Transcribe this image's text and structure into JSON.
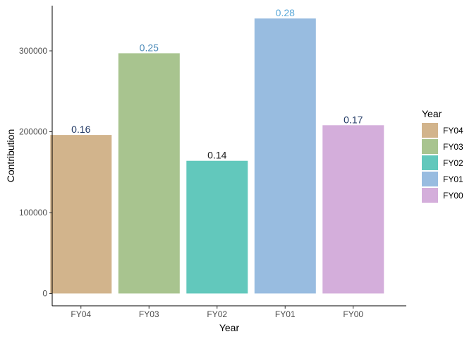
{
  "chart_data": {
    "type": "bar",
    "categories": [
      "FY04",
      "FY03",
      "FY02",
      "FY01",
      "FY00"
    ],
    "values": [
      196000,
      297000,
      164000,
      340000,
      208000
    ],
    "data_labels": [
      "0.16",
      "0.25",
      "0.14",
      "0.28",
      "0.17"
    ],
    "colors": [
      "#d2b48c",
      "#a8c48f",
      "#62c8bc",
      "#98bce0",
      "#d4aedb"
    ],
    "label_colors": [
      "#203864",
      "#4a8ab8",
      "#1a1a1a",
      "#5aa8d8",
      "#203864"
    ],
    "xlabel": "Year",
    "ylabel": "Contribution",
    "ylim": [
      0,
      345000
    ],
    "yticks": [
      0,
      100000,
      200000,
      300000
    ],
    "ytick_labels": [
      "0",
      "100000",
      "200000",
      "300000"
    ],
    "grid": false,
    "legend": {
      "title": "Year",
      "position": "right",
      "entries": [
        "FY04",
        "FY03",
        "FY02",
        "FY01",
        "FY00"
      ]
    }
  }
}
